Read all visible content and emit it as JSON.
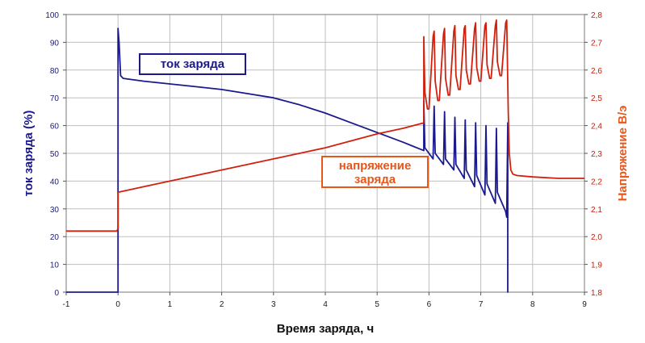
{
  "chart_data": {
    "type": "line",
    "xlabel": "Время заряда, ч",
    "ylabel_left": "ток заряда (%)",
    "ylabel_right": "Напряжение В/э",
    "xlim": [
      -1,
      9
    ],
    "ylim_left": [
      0,
      100
    ],
    "ylim_right": [
      1.8,
      2.8
    ],
    "x_ticks": [
      "-1",
      "0",
      "1",
      "2",
      "3",
      "4",
      "5",
      "6",
      "7",
      "8",
      "9"
    ],
    "y_left_ticks": [
      "0",
      "10",
      "20",
      "30",
      "40",
      "50",
      "60",
      "70",
      "80",
      "90",
      "100"
    ],
    "y_right_ticks": [
      "1,8",
      "1,9",
      "2,0",
      "2,1",
      "2,2",
      "2,3",
      "2,4",
      "2,5",
      "2,6",
      "2,7",
      "2,8"
    ],
    "grid": true,
    "series": [
      {
        "name": "ток заряда",
        "axis": "left",
        "color": "#1a1a8e",
        "x": [
          -1,
          0,
          0.0,
          0.02,
          0.05,
          0.1,
          0.5,
          1,
          1.5,
          2,
          2.5,
          3,
          3.5,
          4,
          4.5,
          5,
          5.5,
          5.9,
          5.9,
          5.92,
          6.08,
          6.1,
          6.12,
          6.28,
          6.3,
          6.32,
          6.48,
          6.5,
          6.52,
          6.68,
          6.7,
          6.72,
          6.88,
          6.9,
          6.92,
          7.08,
          7.1,
          7.12,
          7.28,
          7.3,
          7.32,
          7.48,
          7.5,
          7.52,
          7.52,
          7.53
        ],
        "y": [
          0,
          0,
          95,
          90,
          78,
          77,
          76,
          75,
          74,
          73,
          71.5,
          70,
          67.5,
          64.5,
          61,
          57.5,
          54,
          51,
          69,
          52,
          48,
          67,
          50,
          46,
          65,
          48,
          44,
          63,
          46,
          41,
          62,
          44,
          38,
          61,
          42,
          35,
          60,
          39,
          32,
          59,
          36,
          29,
          27,
          61,
          0,
          0
        ]
      },
      {
        "name": "напряжение заряда",
        "axis": "right",
        "color": "#d0210f",
        "x": [
          -1,
          -0.02,
          0.0,
          0.0,
          0.5,
          1,
          1.5,
          2,
          2.5,
          3,
          3.5,
          4,
          4.5,
          5,
          5.5,
          5.9,
          5.9,
          5.92,
          5.97,
          6.0,
          6.08,
          6.1,
          6.12,
          6.17,
          6.2,
          6.28,
          6.3,
          6.32,
          6.37,
          6.4,
          6.48,
          6.5,
          6.52,
          6.57,
          6.6,
          6.68,
          6.7,
          6.72,
          6.77,
          6.8,
          6.88,
          6.9,
          6.92,
          6.97,
          7.0,
          7.08,
          7.1,
          7.12,
          7.17,
          7.2,
          7.28,
          7.3,
          7.32,
          7.37,
          7.4,
          7.48,
          7.5,
          7.53,
          7.55,
          7.58,
          7.62,
          7.7,
          8,
          8.5,
          9
        ],
        "y": [
          2.02,
          2.02,
          2.03,
          2.16,
          2.18,
          2.2,
          2.22,
          2.24,
          2.26,
          2.28,
          2.3,
          2.32,
          2.345,
          2.37,
          2.39,
          2.41,
          2.72,
          2.52,
          2.46,
          2.46,
          2.72,
          2.74,
          2.56,
          2.49,
          2.49,
          2.73,
          2.75,
          2.57,
          2.51,
          2.51,
          2.74,
          2.76,
          2.58,
          2.53,
          2.53,
          2.75,
          2.76,
          2.6,
          2.55,
          2.55,
          2.75,
          2.77,
          2.61,
          2.56,
          2.56,
          2.76,
          2.77,
          2.62,
          2.57,
          2.57,
          2.76,
          2.78,
          2.63,
          2.58,
          2.58,
          2.77,
          2.78,
          2.45,
          2.3,
          2.24,
          2.225,
          2.22,
          2.215,
          2.21,
          2.21
        ]
      }
    ],
    "annotations": [
      {
        "text": "ток заряда",
        "series": "ток заряда"
      },
      {
        "text": "напряжение заряда",
        "series": "напряжение заряда"
      }
    ]
  }
}
